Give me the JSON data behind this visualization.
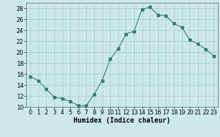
{
  "x": [
    0,
    1,
    2,
    3,
    4,
    5,
    6,
    7,
    8,
    9,
    10,
    11,
    12,
    13,
    14,
    15,
    16,
    17,
    18,
    19,
    20,
    21,
    22,
    23
  ],
  "y": [
    15.5,
    14.8,
    13.2,
    11.8,
    11.5,
    11.0,
    10.2,
    10.2,
    12.3,
    14.8,
    18.7,
    20.6,
    23.3,
    23.8,
    27.8,
    28.2,
    26.8,
    26.6,
    25.2,
    24.5,
    22.2,
    21.5,
    20.5,
    19.3
  ],
  "line_color": "#2e7d6e",
  "marker": "s",
  "marker_size": 2.5,
  "bg_color": "#cce8e8",
  "grid_color": "#aad0d0",
  "xlabel": "Humidex (Indice chaleur)",
  "ylim": [
    10,
    29
  ],
  "xlim": [
    -0.5,
    23.5
  ],
  "yticks": [
    10,
    12,
    14,
    16,
    18,
    20,
    22,
    24,
    26,
    28
  ],
  "axis_fontsize": 7,
  "tick_fontsize": 6
}
